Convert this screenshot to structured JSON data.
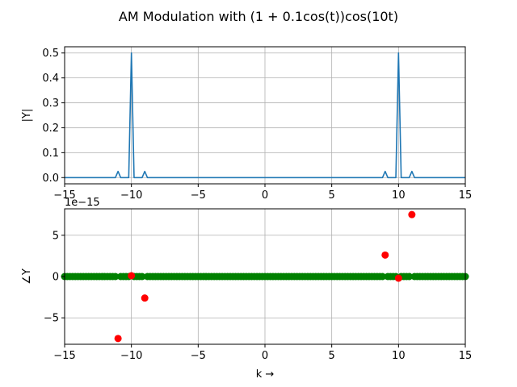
{
  "figure": {
    "title": "AM Modulation with (1 + 0.1cos(t))cos(10t)",
    "colors": {
      "line": "#1f77b4",
      "red": "#ff0000",
      "green": "#008000",
      "grid": "#b0b0b0",
      "axis": "#000000"
    }
  },
  "chart_data": [
    {
      "type": "line",
      "ylabel": "|Y|",
      "xlabel": "",
      "xlim": [
        -15,
        15
      ],
      "ylim": [
        -0.025,
        0.525
      ],
      "grid": true,
      "xticks": [
        -15,
        -10,
        -5,
        0,
        5,
        10,
        15
      ],
      "xtick_labels": [
        "−15",
        "−10",
        "−5",
        "0",
        "5",
        "10",
        "15"
      ],
      "yticks": [
        0.0,
        0.1,
        0.2,
        0.3,
        0.4,
        0.5
      ],
      "ytick_labels": [
        "0.0",
        "0.1",
        "0.2",
        "0.3",
        "0.4",
        "0.5"
      ],
      "series": [
        {
          "x": [
            -15,
            -11.2,
            -11.0,
            -10.8,
            -10.2,
            -10.0,
            -9.8,
            -9.2,
            -9.0,
            -8.8,
            8.8,
            9.0,
            9.2,
            9.8,
            10.0,
            10.2,
            10.8,
            11.0,
            11.2,
            15
          ],
          "y": [
            0,
            0,
            0.025,
            0,
            0,
            0.5,
            0,
            0,
            0.025,
            0,
            0,
            0.025,
            0,
            0,
            0.5,
            0,
            0,
            0.025,
            0,
            0
          ]
        }
      ]
    },
    {
      "type": "scatter",
      "ylabel": "∠Y",
      "xlabel": "k →",
      "offset_text": "1e−15",
      "xlim": [
        -15,
        15
      ],
      "ylim": [
        -8.2,
        8.2
      ],
      "grid": true,
      "xticks": [
        -15,
        -10,
        -5,
        0,
        5,
        10,
        15
      ],
      "xtick_labels": [
        "−15",
        "−10",
        "−5",
        "0",
        "5",
        "10",
        "15"
      ],
      "yticks": [
        -5,
        0,
        5
      ],
      "ytick_labels": [
        "−5",
        "0",
        "5"
      ],
      "series": [
        {
          "color": "red",
          "x": [
            -11,
            -10,
            -9,
            9,
            10,
            11
          ],
          "y": [
            -7.5,
            0.1,
            -2.6,
            2.6,
            -0.2,
            7.5
          ]
        },
        {
          "color": "green",
          "x_range": {
            "start": -15,
            "end": 15,
            "step": 0.2,
            "exclude_near": [
              -11,
              -10,
              -9,
              9,
              10,
              11
            ]
          },
          "y_value": 0
        }
      ]
    }
  ]
}
